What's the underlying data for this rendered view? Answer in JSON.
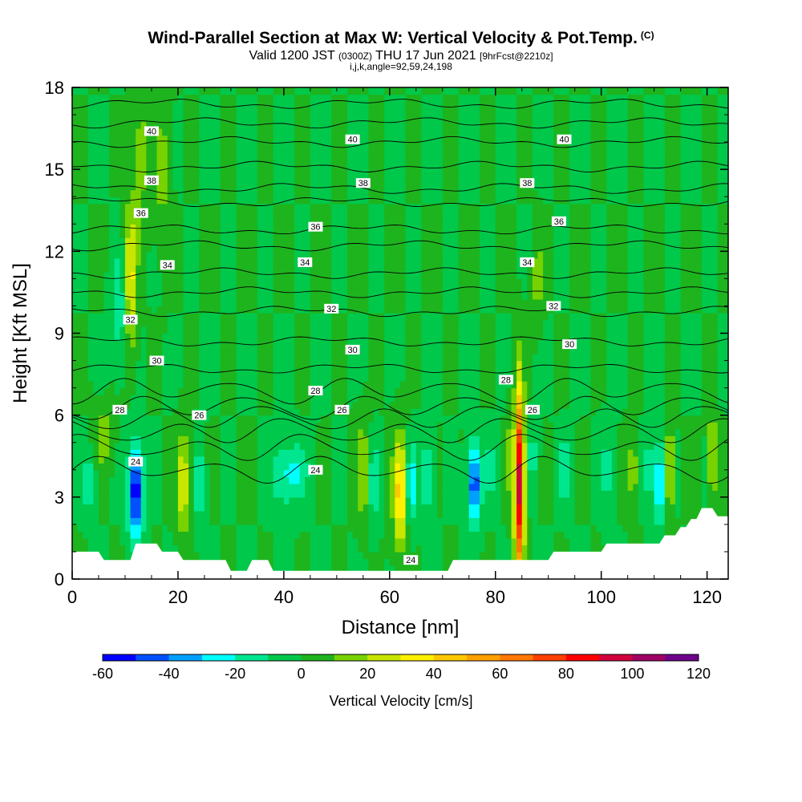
{
  "title": "Wind-Parallel Section at Max W: Vertical Velocity & Pot.Temp.",
  "title_mark": "(C)",
  "subtitle_main": "Valid 1200 JST",
  "subtitle_utc": "(0300Z)",
  "subtitle_date": "THU 17 Jun 2021",
  "subtitle_fcst": "[9hrFcst@2210z]",
  "subtitle2": "i,j,k,angle=92,59,24,198",
  "chart_data": {
    "type": "heatmap",
    "xlabel": "Distance [nm]",
    "ylabel": "Height [Kft MSL]",
    "xlim": [
      0,
      124
    ],
    "ylim": [
      0,
      18
    ],
    "xticks": [
      0,
      20,
      40,
      60,
      80,
      100,
      120
    ],
    "yticks": [
      0,
      3,
      6,
      9,
      12,
      15,
      18
    ],
    "colorbar": {
      "label": "Vertical Velocity [cm/s]",
      "min": -60,
      "max": 120,
      "step": 10,
      "ticks": [
        -60,
        -40,
        -20,
        0,
        20,
        40,
        60,
        80,
        100,
        120
      ],
      "colors": [
        "#0000ff",
        "#0050ff",
        "#00a0ff",
        "#00ffff",
        "#00e690",
        "#00c84a",
        "#1eb41e",
        "#78d200",
        "#c8e600",
        "#fff000",
        "#ffc800",
        "#ffa000",
        "#ff7800",
        "#ff4000",
        "#ff0000",
        "#d2003c",
        "#a00064",
        "#6e008c"
      ]
    },
    "background_value": 0,
    "features": [
      {
        "x": 11,
        "y": 11.0,
        "w": 1.2,
        "h": 2.6,
        "v": 35
      },
      {
        "x": 13,
        "y": 15.5,
        "w": 1.5,
        "h": 2.5,
        "v": 15
      },
      {
        "x": 17,
        "y": 15.0,
        "w": 1.5,
        "h": 2.5,
        "v": 15
      },
      {
        "x": 9,
        "y": 10.0,
        "w": 1.5,
        "h": 2.0,
        "v": -20
      },
      {
        "x": 12,
        "y": 3.2,
        "w": 1.4,
        "h": 1.7,
        "v": -60
      },
      {
        "x": 6,
        "y": 5.2,
        "w": 1.5,
        "h": 1.0,
        "v": 20
      },
      {
        "x": 21,
        "y": 3.5,
        "w": 1.2,
        "h": 1.8,
        "v": 30
      },
      {
        "x": 24,
        "y": 3.5,
        "w": 1.0,
        "h": 1.5,
        "v": -20
      },
      {
        "x": 40,
        "y": 3.8,
        "w": 2.5,
        "h": 1.2,
        "v": -20
      },
      {
        "x": 43,
        "y": 4.0,
        "w": 2.0,
        "h": 1.0,
        "v": -15
      },
      {
        "x": 55,
        "y": 4.0,
        "w": 1.2,
        "h": 1.8,
        "v": 20
      },
      {
        "x": 57,
        "y": 3.5,
        "w": 1.0,
        "h": 1.5,
        "v": -20
      },
      {
        "x": 62,
        "y": 3.2,
        "w": 1.3,
        "h": 2.0,
        "v": 45
      },
      {
        "x": 64,
        "y": 3.5,
        "w": 1.0,
        "h": 1.5,
        "v": -30
      },
      {
        "x": 67,
        "y": 3.8,
        "w": 1.2,
        "h": 1.5,
        "v": -20
      },
      {
        "x": 76,
        "y": 3.5,
        "w": 1.2,
        "h": 1.5,
        "v": -50
      },
      {
        "x": 79,
        "y": 4.0,
        "w": 1.0,
        "h": 1.2,
        "v": -15
      },
      {
        "x": 84.5,
        "y": 3.5,
        "w": 0.9,
        "h": 3.5,
        "v": 95
      },
      {
        "x": 82.5,
        "y": 4.5,
        "w": 0.6,
        "h": 1.5,
        "v": 15
      },
      {
        "x": 87,
        "y": 4.5,
        "w": 1.0,
        "h": 1.2,
        "v": -15
      },
      {
        "x": 93,
        "y": 4.0,
        "w": 1.2,
        "h": 1.2,
        "v": -20
      },
      {
        "x": 101,
        "y": 4.0,
        "w": 1.2,
        "h": 1.5,
        "v": -15
      },
      {
        "x": 106,
        "y": 4.0,
        "w": 0.8,
        "h": 1.5,
        "v": 20
      },
      {
        "x": 109,
        "y": 4.0,
        "w": 0.8,
        "h": 1.5,
        "v": -20
      },
      {
        "x": 111,
        "y": 3.5,
        "w": 0.8,
        "h": 1.5,
        "v": -40
      },
      {
        "x": 113,
        "y": 4.0,
        "w": 0.8,
        "h": 1.5,
        "v": 30
      },
      {
        "x": 121,
        "y": 4.5,
        "w": 0.8,
        "h": 1.5,
        "v": 30
      },
      {
        "x": 3,
        "y": 3.5,
        "w": 1.2,
        "h": 1.0,
        "v": -20
      },
      {
        "x": 88,
        "y": 11.0,
        "w": 1.0,
        "h": 1.5,
        "v": 15
      }
    ],
    "terrain": {
      "x": [
        0,
        5,
        6,
        11,
        12,
        16,
        17,
        20,
        21,
        29,
        30,
        33,
        34,
        37,
        38,
        71,
        72,
        90,
        91,
        93,
        94,
        100,
        101,
        111,
        112,
        114,
        115,
        116,
        117,
        118,
        119,
        121,
        122,
        124
      ],
      "y": [
        1.0,
        1.0,
        0.7,
        0.7,
        1.3,
        1.3,
        1.0,
        1.0,
        0.7,
        0.7,
        0.3,
        0.3,
        0.7,
        0.7,
        0.3,
        0.3,
        0.7,
        0.7,
        1.0,
        1.0,
        1.0,
        1.0,
        1.3,
        1.3,
        1.6,
        1.6,
        1.9,
        1.9,
        2.2,
        2.2,
        2.6,
        2.6,
        2.3,
        2.3
      ]
    },
    "isentropes": [
      {
        "base": 4.0,
        "label": "24",
        "label_pos": [
          [
            12,
            4.3
          ],
          [
            46,
            4.0
          ],
          [
            64,
            0.7
          ]
        ]
      },
      {
        "base": 4.8,
        "label": "",
        "label_pos": []
      },
      {
        "base": 5.4,
        "label": "",
        "label_pos": []
      },
      {
        "base": 5.9,
        "label": "26",
        "label_pos": [
          [
            24,
            6.0
          ],
          [
            51,
            6.2
          ],
          [
            87,
            6.2
          ]
        ]
      },
      {
        "base": 6.3,
        "label": "28",
        "label_pos": [
          [
            9,
            6.2
          ],
          [
            46,
            6.9
          ],
          [
            82,
            7.3
          ]
        ]
      },
      {
        "base": 6.9,
        "label": "",
        "label_pos": []
      },
      {
        "base": 7.7,
        "label": "30",
        "label_pos": [
          [
            16,
            8.0
          ],
          [
            53,
            8.4
          ],
          [
            94,
            8.6
          ]
        ]
      },
      {
        "base": 8.7,
        "label": "",
        "label_pos": []
      },
      {
        "base": 9.8,
        "label": "32",
        "label_pos": [
          [
            11,
            9.5
          ],
          [
            49,
            9.9
          ],
          [
            91,
            10.0
          ]
        ]
      },
      {
        "base": 10.5,
        "label": "",
        "label_pos": []
      },
      {
        "base": 11.2,
        "label": "34",
        "label_pos": [
          [
            18,
            11.5
          ],
          [
            44,
            11.6
          ],
          [
            86,
            11.6
          ]
        ]
      },
      {
        "base": 12.2,
        "label": "",
        "label_pos": []
      },
      {
        "base": 12.8,
        "label": "36",
        "label_pos": [
          [
            13,
            13.4
          ],
          [
            46,
            12.9
          ],
          [
            92,
            13.1
          ]
        ]
      },
      {
        "base": 13.8,
        "label": "",
        "label_pos": []
      },
      {
        "base": 14.3,
        "label": "38",
        "label_pos": [
          [
            15,
            14.6
          ],
          [
            55,
            14.5
          ],
          [
            86,
            14.5
          ]
        ]
      },
      {
        "base": 15.1,
        "label": "",
        "label_pos": []
      },
      {
        "base": 16.0,
        "label": "40",
        "label_pos": [
          [
            15,
            16.4
          ],
          [
            53,
            16.1
          ],
          [
            93,
            16.1
          ]
        ]
      },
      {
        "base": 16.7,
        "label": "",
        "label_pos": []
      },
      {
        "base": 17.4,
        "label": "",
        "label_pos": []
      }
    ]
  }
}
